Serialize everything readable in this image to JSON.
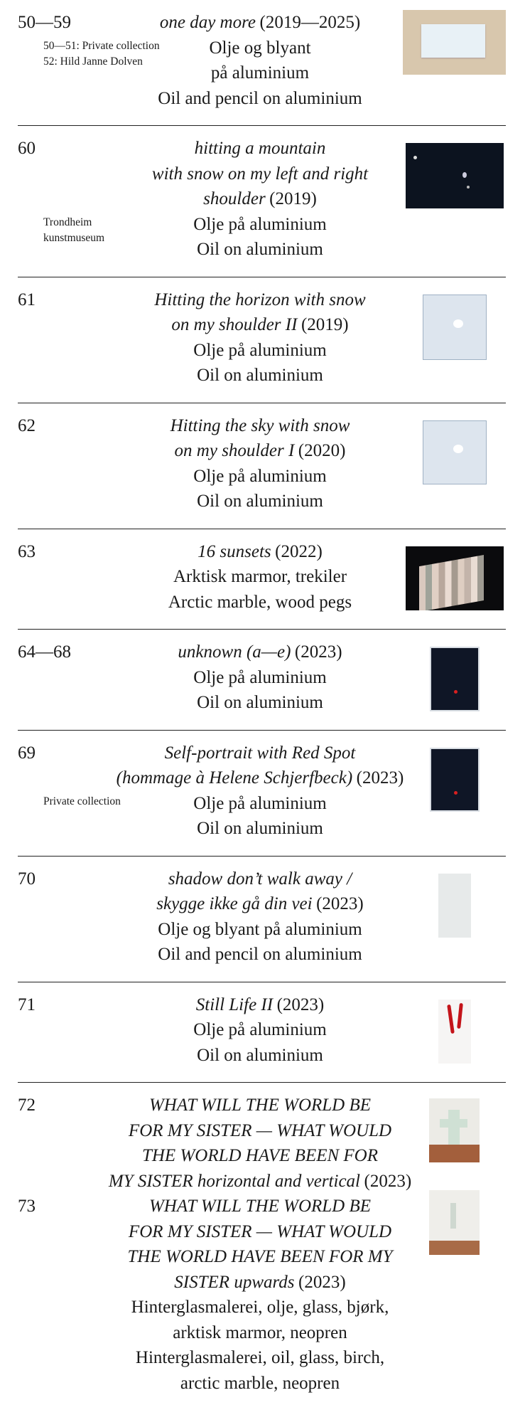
{
  "blocks": [
    {
      "works": [
        {
          "number": "50—59",
          "title": [
            "one day more"
          ],
          "year": "(2019—2025)"
        }
      ],
      "notes": [
        "50—51: Private collection",
        "52: Hild Janne Dolven"
      ],
      "materials": [
        "Olje og blyant",
        "på aluminium",
        "Oil and pencil on aluminium"
      ]
    },
    {
      "works": [
        {
          "number": "60",
          "title": [
            "hitting a mountain",
            "with snow on my left and right",
            "shoulder"
          ],
          "year": "(2019)"
        }
      ],
      "notes": [
        "Trondheim",
        "kunstmuseum"
      ],
      "materials": [
        "Olje på aluminium",
        "Oil on aluminium"
      ]
    },
    {
      "works": [
        {
          "number": "61",
          "title": [
            "Hitting the horizon with snow",
            "on my shoulder II"
          ],
          "year": "(2019)"
        }
      ],
      "materials": [
        "Olje på aluminium",
        "Oil on aluminium"
      ]
    },
    {
      "works": [
        {
          "number": "62",
          "title": [
            "Hitting the sky with snow",
            "on my shoulder I"
          ],
          "year": "(2020)"
        }
      ],
      "materials": [
        "Olje på aluminium",
        "Oil on aluminium"
      ]
    },
    {
      "works": [
        {
          "number": "63",
          "title": [
            "16 sunsets"
          ],
          "year": "(2022)"
        }
      ],
      "materials": [
        "Arktisk marmor, trekiler",
        "Arctic marble, wood pegs"
      ]
    },
    {
      "works": [
        {
          "number": "64—68",
          "title": [
            "unknown (a—e)"
          ],
          "year": "(2023)"
        }
      ],
      "materials": [
        "Olje på aluminium",
        "Oil on aluminium"
      ]
    },
    {
      "works": [
        {
          "number": "69",
          "title": [
            "Self-portrait with Red Spot",
            "(hommage à Helene Schjerfbeck)"
          ],
          "year": "(2023)"
        }
      ],
      "notes": [
        "Private collection"
      ],
      "materials": [
        "Olje på aluminium",
        "Oil on aluminium"
      ]
    },
    {
      "works": [
        {
          "number": "70",
          "title": [
            "shadow don’t walk away /",
            "skygge ikke gå din vei"
          ],
          "year": "(2023)"
        }
      ],
      "materials": [
        "Olje og blyant på aluminium",
        "Oil and pencil on aluminium"
      ]
    },
    {
      "works": [
        {
          "number": "71",
          "title": [
            "Still Life II"
          ],
          "year": "(2023)"
        }
      ],
      "materials": [
        "Olje på aluminium",
        "Oil on aluminium"
      ]
    },
    {
      "works": [
        {
          "number": "72",
          "title": [
            "WHAT WILL THE WORLD BE",
            "FOR MY SISTER — WHAT WOULD",
            "THE WORLD HAVE BEEN FOR",
            "MY SISTER horizontal and vertical"
          ],
          "year": "(2023)"
        },
        {
          "number": "73",
          "title": [
            "WHAT WILL THE WORLD BE",
            "FOR MY SISTER — WHAT WOULD",
            "THE WORLD HAVE BEEN FOR MY",
            "SISTER upwards"
          ],
          "year": "(2023)"
        }
      ],
      "materials": [
        "Hinterglasmalerei, olje, glass, bjørk,",
        "arktisk marmor, neopren",
        "Hinterglasmalerei, oil, glass, birch,",
        "arctic marble, neopren"
      ]
    }
  ]
}
